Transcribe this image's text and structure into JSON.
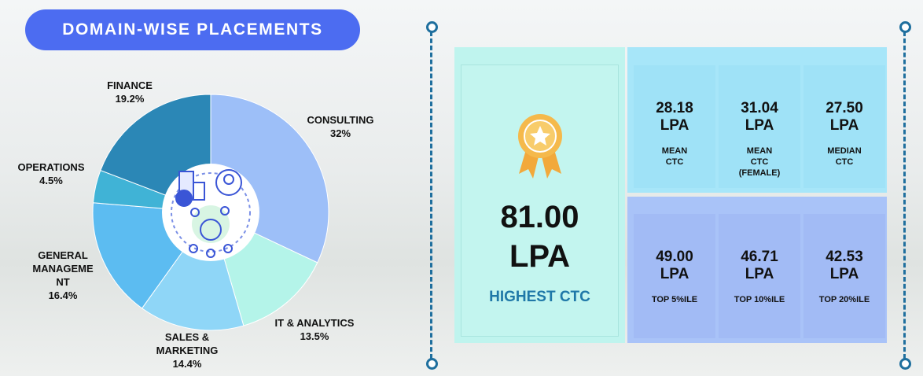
{
  "chart_data": {
    "type": "pie",
    "title": "DOMAIN-WISE PLACEMENTS",
    "categories": [
      "CONSULTING",
      "IT & ANALYTICS",
      "SALES & MARKETING",
      "GENERAL MANAGEMENT",
      "OPERATIONS",
      "FINANCE"
    ],
    "values": [
      32,
      13.5,
      14.4,
      16.4,
      4.5,
      19.2
    ],
    "value_labels": [
      "32%",
      "13.5%",
      "14.4%",
      "16.4%",
      "4.5%",
      "19.2%"
    ],
    "colors": [
      "#9dbff8",
      "#b4f4e9",
      "#8fd6f7",
      "#5cbcf1",
      "#40b3d6",
      "#2b87b6"
    ]
  },
  "highest": {
    "value": "81.00",
    "unit": "LPA",
    "label": "HIGHEST CTC"
  },
  "stats": [
    {
      "value": "28.18",
      "unit": "LPA",
      "label": "MEAN CTC"
    },
    {
      "value": "31.04",
      "unit": "LPA",
      "label": "MEAN CTC (FEMALE)"
    },
    {
      "value": "27.50",
      "unit": "LPA",
      "label": "MEDIAN CTC"
    }
  ],
  "percentiles": [
    {
      "value": "49.00",
      "unit": "LPA",
      "label": "TOP 5%ILE"
    },
    {
      "value": "46.71",
      "unit": "LPA",
      "label": "TOP 10%ILE"
    },
    {
      "value": "42.53",
      "unit": "LPA",
      "label": "TOP 20%ILE"
    }
  ]
}
